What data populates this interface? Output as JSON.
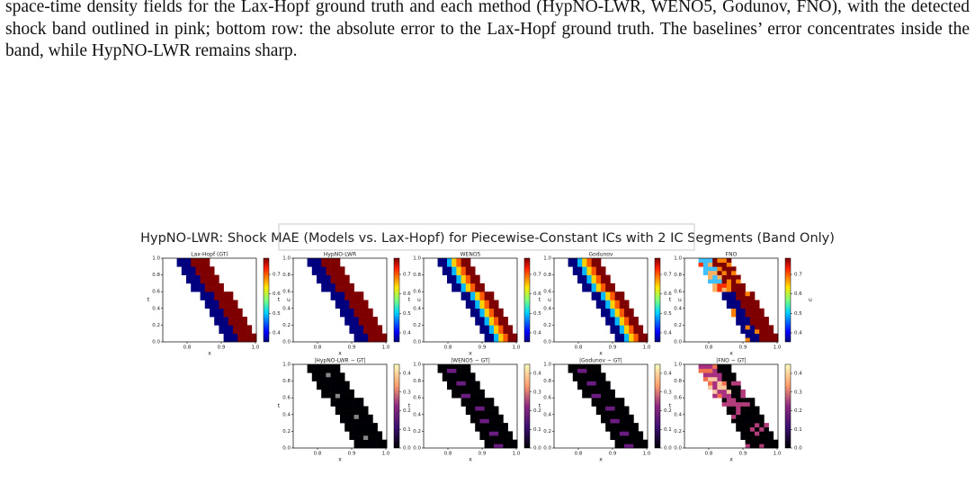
{
  "caption": "space-time density fields for the Lax-Hopf ground truth and each method (HypNO-LWR, WENO5, Godunov, FNO), with the detected shock band outlined in pink; bottom row: the absolute error to the Lax-Hopf ground truth. The baselines’ error concentrates inside the band, while HypNO-LWR remains sharp.",
  "figure": {
    "title": "HypNO-LWR: Shock MAE (Models vs. Lax-Hopf) for Piecewise-Constant ICs with 2 IC Segments (Band Only)",
    "xlabel": "x",
    "ylabel": "t",
    "xticks": [
      "0.8",
      "0.9",
      "1.0"
    ],
    "yticks": [
      "0.0",
      "0.2",
      "0.4",
      "0.6",
      "0.8",
      "1.0"
    ],
    "top_row": {
      "titles": [
        "Lax-Hopf (GT)",
        "HypNO-LWR",
        "WENO5",
        "Godunov",
        "FNO"
      ],
      "colorbar_label": "u",
      "colorbar_ticks": [
        "0.4",
        "0.5",
        "0.6",
        "0.7"
      ]
    },
    "bottom_row": {
      "titles": [
        "|HypNO-LWR − GT|",
        "|WENO5 − GT|",
        "|Godunov − GT|",
        "|FNO − GT|"
      ],
      "colorbar_ticks": [
        "0.0",
        "0.1",
        "0.2",
        "0.3",
        "0.4"
      ]
    }
  }
}
